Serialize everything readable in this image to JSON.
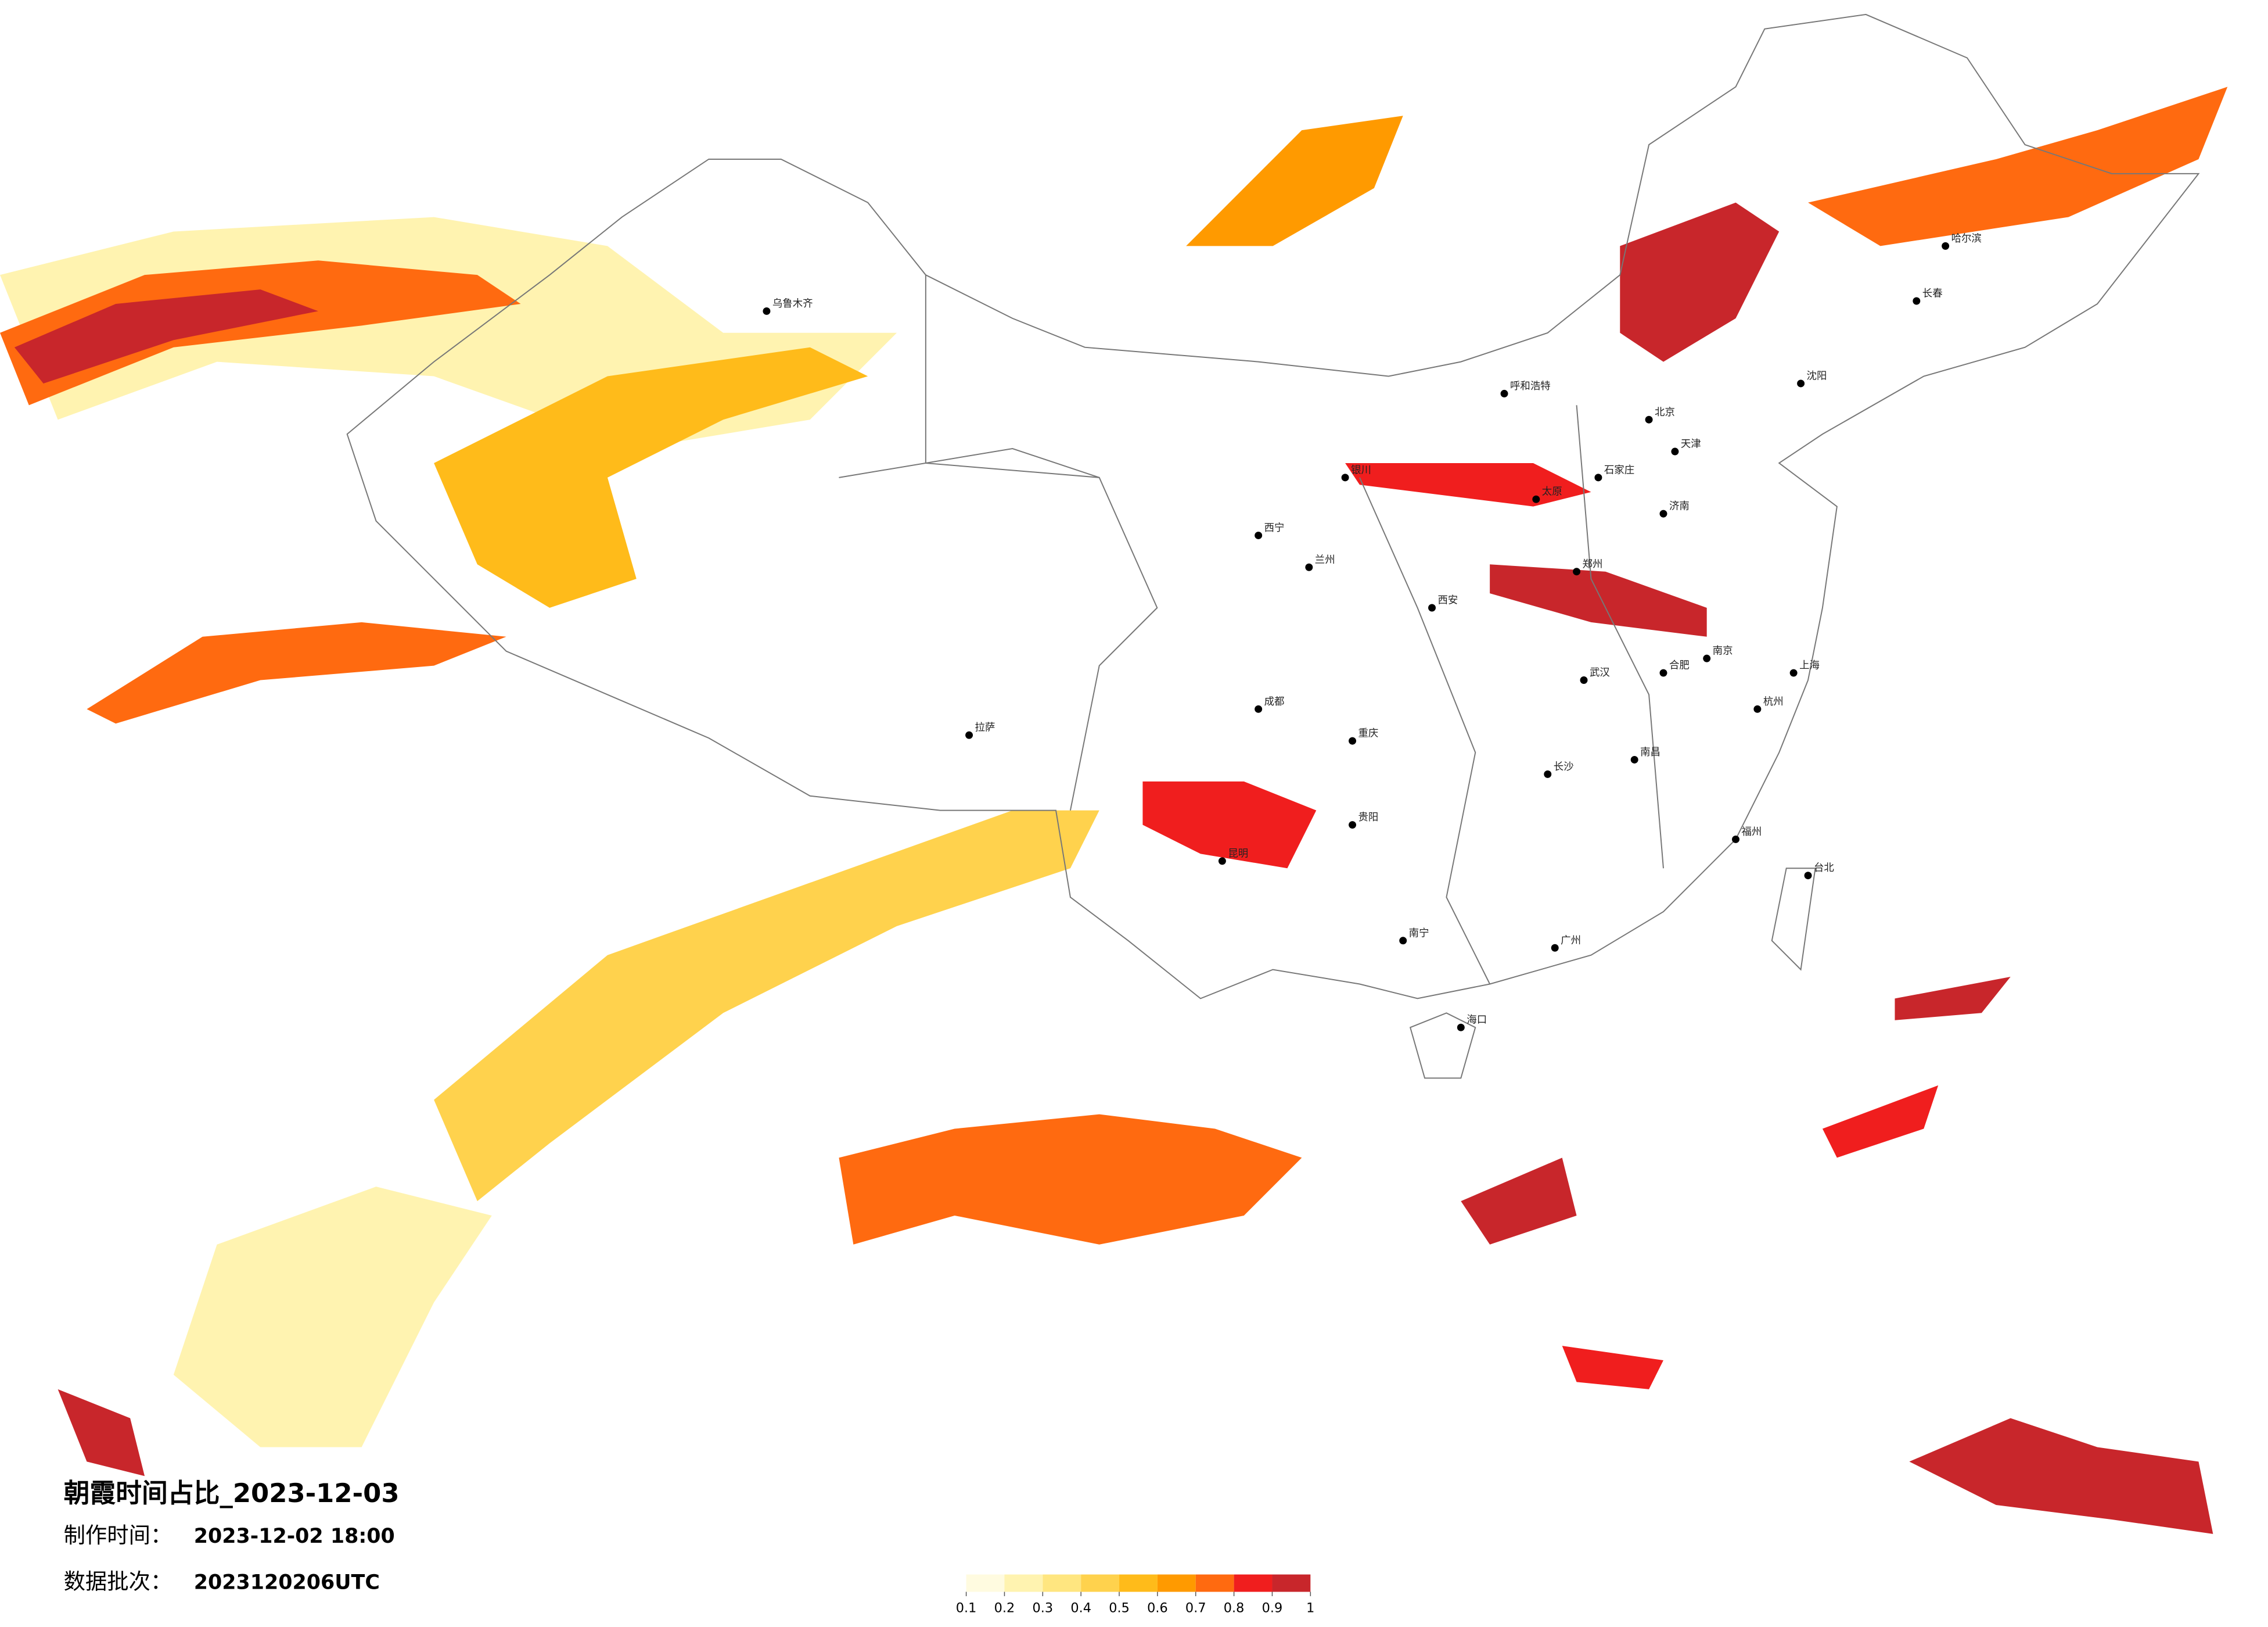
{
  "title": "朝霞时间占比_2023-12-03",
  "made_label": "制作时间：",
  "made_value": "2023-12-02 18:00",
  "batch_label": "数据批次：",
  "batch_value": "2023120206UTC",
  "colorbar": {
    "colors": [
      "#fffbe0",
      "#fff3b0",
      "#ffe680",
      "#ffd24d",
      "#ffbb1a",
      "#ff9a00",
      "#ff6a10",
      "#f01e1e",
      "#c8262b"
    ],
    "ticks": [
      0.1,
      0.2,
      0.3,
      0.4,
      0.5,
      0.6,
      0.7,
      0.8,
      0.9,
      1
    ]
  },
  "cities": [
    "北京",
    "天津",
    "石家庄",
    "太原",
    "呼和浩特",
    "沈阳",
    "长春",
    "哈尔滨",
    "乌鲁木齐",
    "拉萨",
    "西宁",
    "兰州",
    "银川",
    "西安",
    "郑州",
    "武汉",
    "长沙",
    "南昌",
    "福州",
    "杭州",
    "南京",
    "上海",
    "合肥",
    "济南",
    "广州",
    "南宁",
    "海口",
    "昆明",
    "贵阳",
    "成都",
    "重庆",
    "台北"
  ]
}
